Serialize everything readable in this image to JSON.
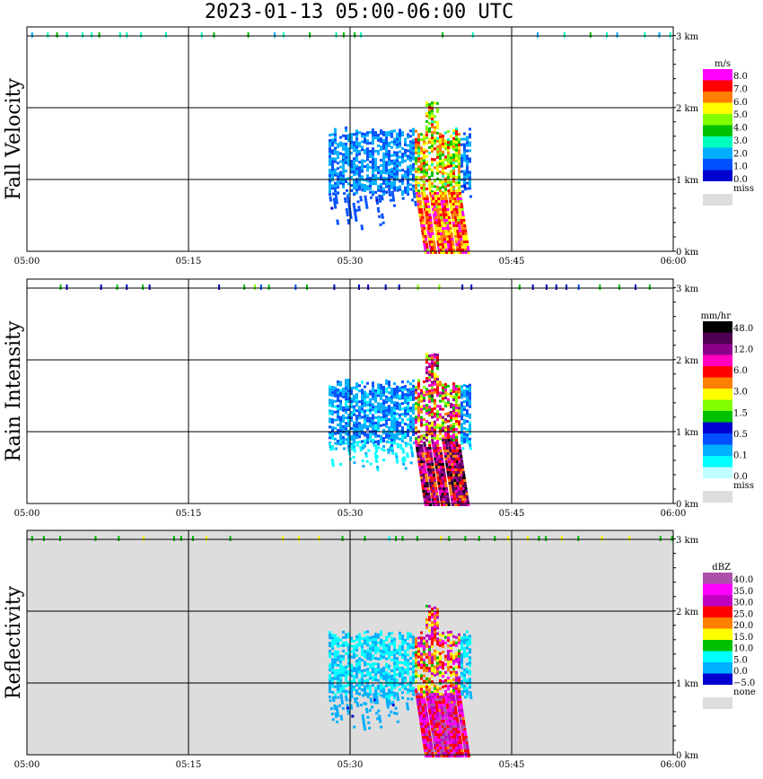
{
  "title": "2023-01-13   05:00-06:00 UTC",
  "x_ticks": [
    "05:00",
    "05:15",
    "05:30",
    "05:45",
    "06:00"
  ],
  "y_ticks": [
    "0 km",
    "1 km",
    "2 km",
    "3 km"
  ],
  "chart_data": [
    {
      "type": "heatmap",
      "ylabel": "Fall Velocity",
      "legend_unit": "m/s",
      "legend_labels": [
        "8.0",
        "7.0",
        "6.0",
        "5.0",
        "4.0",
        "3.0",
        "2.0",
        "1.0",
        "0.0"
      ],
      "legend_colors": [
        "#ff00ff",
        "#ff0000",
        "#ff7f00",
        "#ffff00",
        "#7fff00",
        "#00bf00",
        "#00ffbf",
        "#00afff",
        "#0050ff",
        "#0000d0"
      ],
      "miss_label": "miss",
      "miss_color": "#dddddd",
      "background": "#ffffff",
      "xlim": [
        "05:00",
        "06:00"
      ],
      "ylim_km": [
        0,
        3
      ],
      "precip_start": "05:28",
      "precip_end": "05:41",
      "fall_streak_core": "05:36-05:40",
      "max_echo_top_km": 2.1
    },
    {
      "type": "heatmap",
      "ylabel": "Rain Intensity",
      "legend_unit": "mm/hr",
      "legend_labels": [
        "48.0",
        "12.0",
        "6.0",
        "3.0",
        "1.5",
        "0.5",
        "0.1",
        "0.0"
      ],
      "legend_colors": [
        "#000000",
        "#500050",
        "#8b008b",
        "#ff00c0",
        "#ff0000",
        "#ff7f00",
        "#ffff00",
        "#7fff00",
        "#00c000",
        "#0000d0",
        "#0050ff",
        "#00afff",
        "#00ffff",
        "#c0ffff"
      ],
      "miss_label": "miss",
      "miss_color": "#dddddd",
      "background": "#ffffff",
      "xlim": [
        "05:00",
        "06:00"
      ],
      "ylim_km": [
        0,
        3
      ],
      "precip_start": "05:28",
      "precip_end": "05:41",
      "fall_streak_core": "05:36-05:40",
      "max_echo_top_km": 2.1
    },
    {
      "type": "heatmap",
      "ylabel": "Reflectivity",
      "legend_unit": "dBZ",
      "legend_labels": [
        "40.0",
        "35.0",
        "30.0",
        "25.0",
        "20.0",
        "15.0",
        "10.0",
        "5.0",
        "0.0",
        "−5.0"
      ],
      "legend_colors": [
        "#ab50ab",
        "#ff00ff",
        "#c000c0",
        "#ff0000",
        "#ff7f00",
        "#ffff00",
        "#00c000",
        "#00ffff",
        "#00afff",
        "#0000d0"
      ],
      "miss_label": "none",
      "miss_color": "#dddddd",
      "background": "#dddddd",
      "xlim": [
        "05:00",
        "06:00"
      ],
      "ylim_km": [
        0,
        3
      ],
      "precip_start": "05:28",
      "precip_end": "05:41",
      "fall_streak_core": "05:36-05:40",
      "max_echo_top_km": 2.1
    }
  ]
}
